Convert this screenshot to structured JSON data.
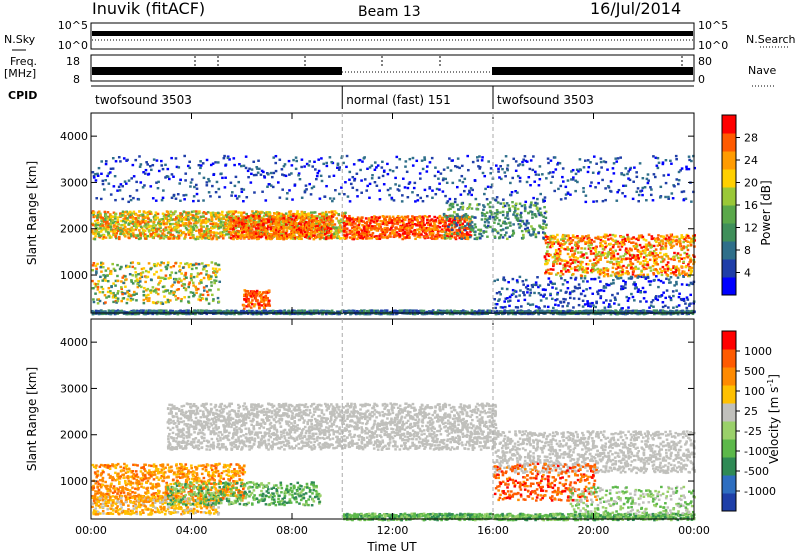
{
  "header": {
    "station": "Inuvik (fitACF)",
    "beam": "Beam 13",
    "date": "16/Jul/2014"
  },
  "sky_panel": {
    "left_label": "N.Sky",
    "left_ticks": [
      "10^5",
      "10^0"
    ],
    "right_label": "N.Search",
    "right_ticks": [
      "10^5",
      "10^0"
    ]
  },
  "freq_panel": {
    "left_label_1": "Freq.",
    "left_label_2": "[MHz]",
    "left_ticks": [
      "18",
      "8"
    ],
    "right_label": "Nave",
    "right_ticks": [
      "80",
      "0"
    ]
  },
  "cpid_panel": {
    "label": "CPID",
    "segments": [
      {
        "name": "twofsound 3503",
        "start_hr": 0,
        "end_hr": 10
      },
      {
        "name": "normal (fast) 151",
        "start_hr": 10,
        "end_hr": 16
      },
      {
        "name": "twofsound 3503",
        "start_hr": 16,
        "end_hr": 24
      }
    ]
  },
  "chart_data": [
    {
      "type": "heatmap",
      "name": "power",
      "ylabel": "Slant Range [km]",
      "xlim": [
        0,
        24
      ],
      "ylim": [
        180,
        4500
      ],
      "yticks": [
        "1000",
        "2000",
        "3000",
        "4000"
      ],
      "xticks": [
        "00:00",
        "04:00",
        "08:00",
        "12:00",
        "16:00",
        "20:00",
        "00:00"
      ],
      "xtick_values": [
        0,
        4,
        8,
        12,
        16,
        20,
        24
      ],
      "colorbar": {
        "label": "Power [dB]",
        "ticks": [
          "28",
          "24",
          "20",
          "16",
          "12",
          "8",
          "4"
        ],
        "range": [
          0,
          32
        ],
        "colors": [
          "#0000ff",
          "#1f3ea8",
          "#2f6f8a",
          "#3f8f5a",
          "#5aa84a",
          "#9ac838",
          "#ffd000",
          "#ff9b00",
          "#ff5a00",
          "#ff0000"
        ]
      }
    },
    {
      "type": "heatmap",
      "name": "velocity",
      "ylabel": "Slant Range [km]",
      "xlabel": "Time UT",
      "xlim": [
        0,
        24
      ],
      "ylim": [
        180,
        4500
      ],
      "yticks": [
        "1000",
        "2000",
        "3000",
        "4000"
      ],
      "xticks": [
        "00:00",
        "04:00",
        "08:00",
        "12:00",
        "16:00",
        "20:00",
        "00:00"
      ],
      "xtick_values": [
        0,
        4,
        8,
        12,
        16,
        20,
        24
      ],
      "colorbar": {
        "label": "Velocity [m s",
        "label_sup": "-1",
        "label_end": "]",
        "ticks": [
          "1000",
          "500",
          "100",
          "25",
          "-25",
          "-100",
          "-500",
          "-1000"
        ],
        "colors": [
          "#1e3fa8",
          "#2e6ec0",
          "#2f8a55",
          "#5cb84a",
          "#9ad06a",
          "#c0c0bc",
          "#ffc000",
          "#ff8a00",
          "#ff5a00",
          "#ff0000"
        ]
      }
    }
  ]
}
